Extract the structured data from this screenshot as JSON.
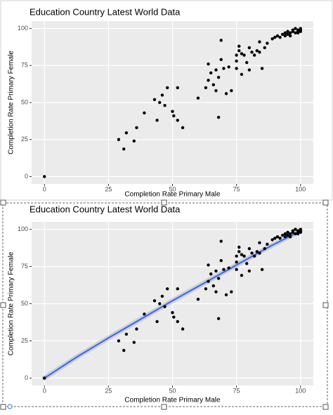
{
  "chart_data": [
    {
      "type": "scatter",
      "title": "Education Country Latest World Data",
      "x_label": "Completion Rate Primary Male",
      "y_label": "Completion Rate Primary Female",
      "x": [
        0,
        29,
        31,
        32,
        35,
        36,
        39,
        43,
        44,
        45,
        46,
        47,
        48,
        50,
        50.5,
        52,
        52,
        54,
        60,
        63,
        64,
        64,
        65,
        66,
        67,
        67,
        68,
        68,
        69,
        69,
        70,
        71,
        72,
        73,
        75,
        75,
        75,
        76,
        76,
        77,
        77,
        78,
        79,
        80,
        80,
        81,
        82,
        83,
        84,
        84,
        85,
        86,
        87,
        89,
        90,
        91,
        92,
        93,
        94,
        95,
        95,
        96,
        97,
        97,
        98,
        98,
        99,
        99,
        100,
        100,
        100,
        99,
        96,
        94
      ],
      "values": [
        0,
        25,
        18.6,
        29.5,
        24,
        33,
        43,
        52,
        38,
        50,
        55,
        48,
        60,
        44,
        41,
        60,
        38,
        33,
        53,
        60,
        65,
        76,
        70,
        62,
        72,
        58,
        67,
        40,
        79,
        92,
        73,
        56,
        74,
        58,
        82,
        78,
        73,
        85,
        88,
        83,
        69,
        82,
        77,
        72,
        87,
        84,
        82,
        85,
        91,
        84,
        73,
        87,
        90,
        93,
        94,
        95,
        94,
        96,
        97,
        96,
        98,
        97,
        98,
        99,
        97,
        100,
        99,
        98,
        99,
        100,
        98,
        97,
        95,
        95
      ],
      "color": "#000000",
      "xlim": [
        -5,
        105
      ],
      "ylim": [
        -5,
        105
      ],
      "xticks": [
        0,
        25,
        50,
        75,
        100
      ],
      "yticks": [
        0,
        25,
        50,
        75,
        100
      ],
      "grid": true
    },
    {
      "type": "scatter",
      "title": "Education Country Latest World Data",
      "x_label": "Completion Rate Primary Male",
      "y_label": "Completion Rate Primary Female",
      "x": [
        0,
        29,
        31,
        32,
        35,
        36,
        39,
        43,
        44,
        45,
        46,
        47,
        48,
        50,
        50.5,
        52,
        52,
        54,
        60,
        63,
        64,
        64,
        65,
        66,
        67,
        67,
        68,
        68,
        69,
        69,
        70,
        71,
        72,
        73,
        75,
        75,
        75,
        76,
        76,
        77,
        77,
        78,
        79,
        80,
        80,
        81,
        82,
        83,
        84,
        84,
        85,
        86,
        87,
        89,
        90,
        91,
        92,
        93,
        94,
        95,
        95,
        96,
        97,
        97,
        98,
        98,
        99,
        99,
        100,
        100,
        100,
        99,
        96,
        94
      ],
      "values": [
        0,
        25,
        18.6,
        29.5,
        24,
        33,
        43,
        52,
        38,
        50,
        55,
        48,
        60,
        44,
        41,
        60,
        38,
        33,
        53,
        60,
        65,
        76,
        70,
        62,
        72,
        58,
        67,
        40,
        79,
        92,
        73,
        56,
        74,
        58,
        82,
        78,
        73,
        85,
        88,
        83,
        69,
        82,
        77,
        72,
        87,
        84,
        82,
        85,
        91,
        84,
        73,
        87,
        90,
        93,
        94,
        95,
        94,
        96,
        97,
        96,
        98,
        97,
        98,
        99,
        97,
        100,
        99,
        98,
        99,
        100,
        98,
        97,
        95,
        95
      ],
      "color": "#000000",
      "xlim": [
        -5,
        105
      ],
      "ylim": [
        -5,
        105
      ],
      "xticks": [
        0,
        25,
        50,
        75,
        100
      ],
      "yticks": [
        0,
        25,
        50,
        75,
        100
      ],
      "grid": true,
      "smooth": {
        "x": [
          0,
          12.5,
          25,
          37.5,
          50,
          62.5,
          75,
          87.5,
          100
        ],
        "values": [
          0,
          14,
          27,
          39.5,
          52,
          64,
          76,
          88,
          99
        ],
        "color": "#3366ff"
      }
    }
  ]
}
